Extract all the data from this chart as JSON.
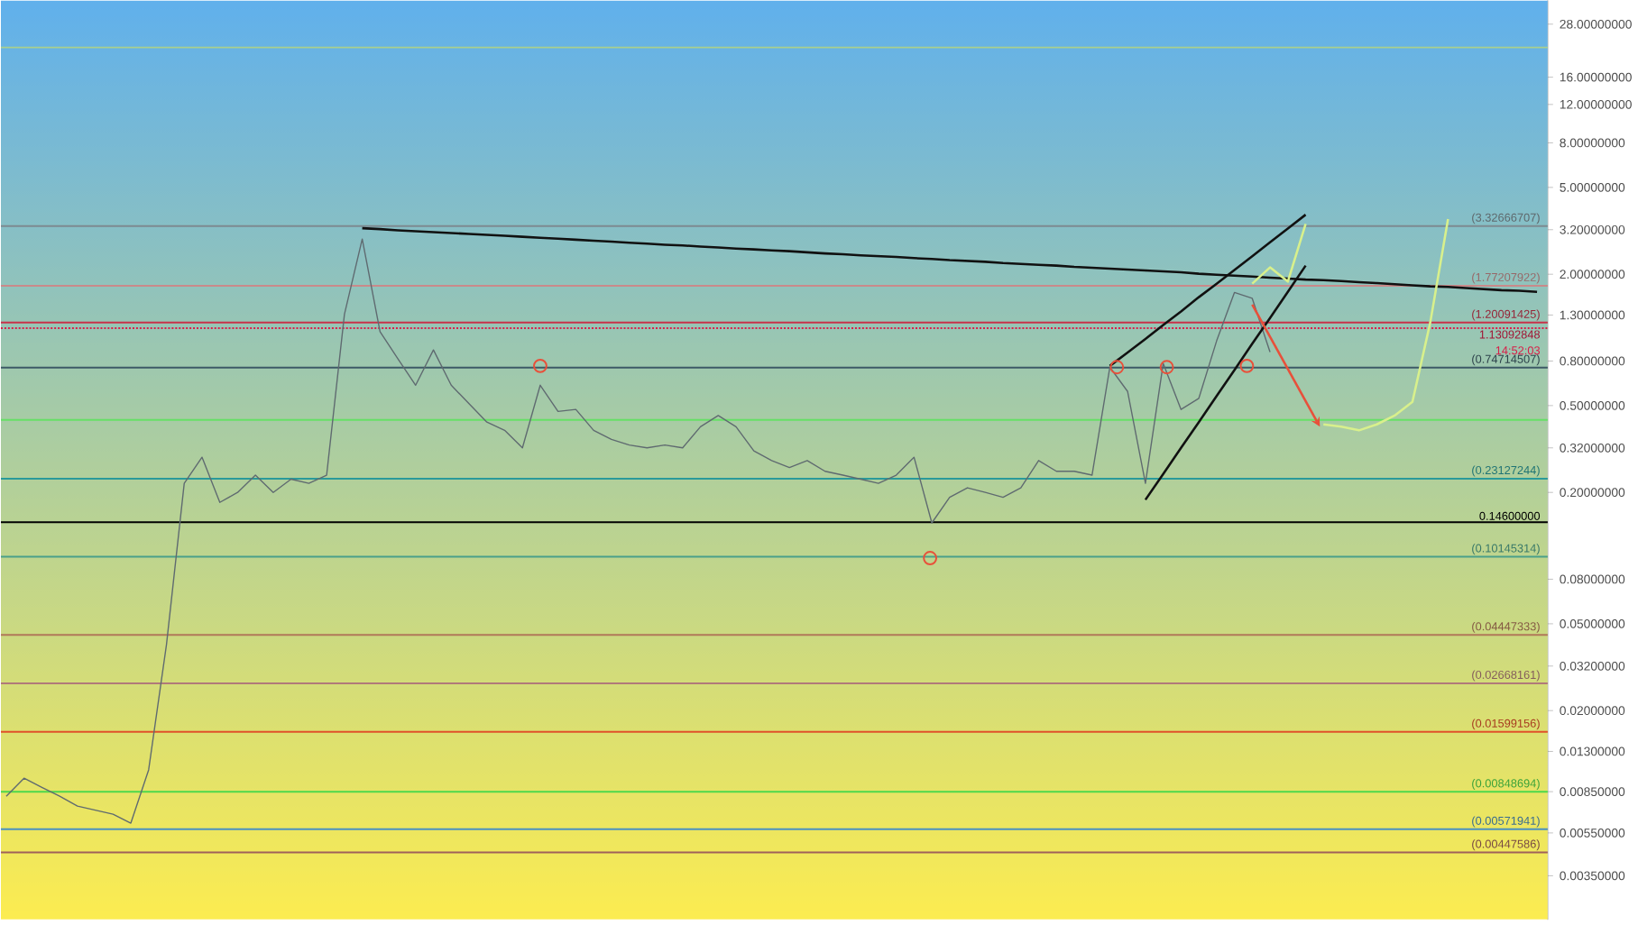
{
  "chart_data": {
    "type": "line",
    "log": "y",
    "tick_labels": "y",
    "ylim": [
      0.0022,
      36
    ],
    "categories": [
      null,
      null,
      null,
      null,
      null,
      null,
      null,
      null,
      null,
      null,
      null,
      null,
      null,
      null,
      null,
      null,
      null,
      null,
      null,
      null,
      null,
      null,
      null,
      null,
      null,
      null,
      null,
      null,
      null,
      null,
      null,
      null,
      null,
      null,
      null,
      null,
      null,
      null,
      null,
      null,
      null,
      null,
      null,
      null,
      null,
      null,
      null,
      null,
      null,
      null,
      null,
      null,
      null,
      null,
      null,
      null,
      null,
      null,
      null,
      null,
      null,
      null,
      null,
      null,
      null,
      null,
      null,
      null,
      null,
      null,
      null,
      null,
      null,
      null,
      null,
      null,
      null,
      null,
      null,
      null,
      null,
      null,
      null,
      null,
      null,
      null,
      null
    ],
    "yticks": [
      {
        "value": 28,
        "label": "28.00000000"
      },
      {
        "value": 16,
        "label": "16.00000000"
      },
      {
        "value": 12,
        "label": "12.00000000"
      },
      {
        "value": 8,
        "label": "8.00000000"
      },
      {
        "value": 5,
        "label": "5.00000000"
      },
      {
        "value": 3.2,
        "label": "3.20000000"
      },
      {
        "value": 2,
        "label": "2.00000000"
      },
      {
        "value": 1.3,
        "label": "1.30000000"
      },
      {
        "value": 0.8,
        "label": "0.80000000"
      },
      {
        "value": 0.5,
        "label": "0.50000000"
      },
      {
        "value": 0.32,
        "label": "0.32000000"
      },
      {
        "value": 0.2,
        "label": "0.20000000"
      },
      {
        "value": 0.08,
        "label": "0.08000000"
      },
      {
        "value": 0.05,
        "label": "0.05000000"
      },
      {
        "value": 0.032,
        "label": "0.03200000"
      },
      {
        "value": 0.02,
        "label": "0.02000000"
      },
      {
        "value": 0.013,
        "label": "0.01300000"
      },
      {
        "value": 0.0085,
        "label": "0.00850000"
      },
      {
        "value": 0.0055,
        "label": "0.00550000"
      },
      {
        "value": 0.0035,
        "label": "0.00350000"
      }
    ],
    "series": [
      {
        "color": "#5f6a70",
        "values": [
          0.0081,
          0.0098,
          0.0089,
          0.0081,
          0.0073,
          0.007,
          0.0067,
          0.0061,
          0.0107,
          0.04,
          0.22,
          0.29,
          0.18,
          0.2,
          0.24,
          0.2,
          0.23,
          0.22,
          0.24,
          1.31,
          2.9,
          1.09,
          0.82,
          0.62,
          0.9,
          0.62,
          0.51,
          0.42,
          0.385,
          0.32,
          0.62,
          0.47,
          0.48,
          0.385,
          0.35,
          0.33,
          0.32,
          0.33,
          0.32,
          0.4,
          0.45,
          0.4,
          0.31,
          0.28,
          0.26,
          0.28,
          0.25,
          0.24,
          0.23,
          0.22,
          0.24,
          0.29,
          0.145,
          0.19,
          0.21,
          0.2,
          0.19,
          0.21,
          0.28,
          0.25,
          0.25,
          0.24,
          0.75,
          0.58,
          0.22,
          0.78,
          0.48,
          0.54,
          0.99,
          1.65,
          1.55,
          0.88,
          null,
          null,
          null,
          null,
          null,
          null,
          null,
          null,
          null,
          null,
          null,
          null,
          null,
          null,
          null
        ]
      },
      {
        "color": "#111111",
        "values": [
          null,
          null,
          null,
          null,
          null,
          null,
          null,
          null,
          null,
          null,
          null,
          null,
          null,
          null,
          null,
          null,
          null,
          null,
          null,
          null,
          3.25,
          3.22,
          3.18,
          3.15,
          3.12,
          3.09,
          3.06,
          3.03,
          3.0,
          2.97,
          2.94,
          2.91,
          2.88,
          2.85,
          2.82,
          2.79,
          2.76,
          2.73,
          2.71,
          2.68,
          2.65,
          2.62,
          2.6,
          2.57,
          2.55,
          2.52,
          2.49,
          2.47,
          2.44,
          2.42,
          2.4,
          2.37,
          2.35,
          2.32,
          2.3,
          2.28,
          2.25,
          2.23,
          2.21,
          2.19,
          2.16,
          2.14,
          2.12,
          2.1,
          2.08,
          2.06,
          2.04,
          2.01,
          1.99,
          1.97,
          1.95,
          1.93,
          1.91,
          1.89,
          1.88,
          1.86,
          1.84,
          1.82,
          1.8,
          1.78,
          1.76,
          1.75,
          1.73,
          1.71,
          1.69,
          1.68,
          1.66
        ]
      },
      {
        "color": "#111111",
        "values": [
          null,
          null,
          null,
          null,
          null,
          null,
          null,
          null,
          null,
          null,
          null,
          null,
          null,
          null,
          null,
          null,
          null,
          null,
          null,
          null,
          null,
          null,
          null,
          null,
          null,
          null,
          null,
          null,
          null,
          null,
          null,
          null,
          null,
          null,
          null,
          null,
          null,
          null,
          null,
          null,
          null,
          null,
          null,
          null,
          null,
          null,
          null,
          null,
          null,
          null,
          null,
          null,
          null,
          null,
          null,
          null,
          null,
          null,
          null,
          null,
          null,
          null,
          0.76,
          0.875,
          1.01,
          1.17,
          1.35,
          1.57,
          1.81,
          2.09,
          2.42,
          2.8,
          3.24,
          3.75,
          null,
          null,
          null,
          null,
          null,
          null,
          null,
          null,
          null,
          null,
          null,
          null,
          null
        ]
      },
      {
        "color": "#111111",
        "values": [
          null,
          null,
          null,
          null,
          null,
          null,
          null,
          null,
          null,
          null,
          null,
          null,
          null,
          null,
          null,
          null,
          null,
          null,
          null,
          null,
          null,
          null,
          null,
          null,
          null,
          null,
          null,
          null,
          null,
          null,
          null,
          null,
          null,
          null,
          null,
          null,
          null,
          null,
          null,
          null,
          null,
          null,
          null,
          null,
          null,
          null,
          null,
          null,
          null,
          null,
          null,
          null,
          null,
          null,
          null,
          null,
          null,
          null,
          null,
          null,
          null,
          null,
          null,
          null,
          0.185,
          0.243,
          0.32,
          0.42,
          0.553,
          0.728,
          0.96,
          1.26,
          1.66,
          2.19,
          null,
          null,
          null,
          null,
          null,
          null,
          null,
          null,
          null,
          null,
          null,
          null,
          null
        ]
      },
      {
        "color": "#d8f08c",
        "values": [
          null,
          null,
          null,
          null,
          null,
          null,
          null,
          null,
          null,
          null,
          null,
          null,
          null,
          null,
          null,
          null,
          null,
          null,
          null,
          null,
          null,
          null,
          null,
          null,
          null,
          null,
          null,
          null,
          null,
          null,
          null,
          null,
          null,
          null,
          null,
          null,
          null,
          null,
          null,
          null,
          null,
          null,
          null,
          null,
          null,
          null,
          null,
          null,
          null,
          null,
          null,
          null,
          null,
          null,
          null,
          null,
          null,
          null,
          null,
          null,
          null,
          null,
          null,
          null,
          null,
          null,
          null,
          null,
          null,
          null,
          1.81,
          2.15,
          1.85,
          3.4,
          null,
          null,
          null,
          null,
          null,
          null,
          null,
          null,
          null,
          null,
          null,
          null,
          null
        ]
      },
      {
        "color": "#d8f08c",
        "values": [
          null,
          null,
          null,
          null,
          null,
          null,
          null,
          null,
          null,
          null,
          null,
          null,
          null,
          null,
          null,
          null,
          null,
          null,
          null,
          null,
          null,
          null,
          null,
          null,
          null,
          null,
          null,
          null,
          null,
          null,
          null,
          null,
          null,
          null,
          null,
          null,
          null,
          null,
          null,
          null,
          null,
          null,
          null,
          null,
          null,
          null,
          null,
          null,
          null,
          null,
          null,
          null,
          null,
          null,
          null,
          null,
          null,
          null,
          null,
          null,
          null,
          null,
          null,
          null,
          null,
          null,
          null,
          null,
          null,
          null,
          null,
          null,
          null,
          null,
          0.41,
          0.4,
          0.385,
          0.41,
          0.45,
          0.52,
          1.2,
          3.58,
          null,
          null,
          null,
          null,
          null
        ]
      }
    ],
    "ref_lines": [
      {
        "axis": "y",
        "value": 21.9,
        "color": "#a8cf8e"
      },
      {
        "axis": "y",
        "value": 3.32666707,
        "label": "(3.32666707)",
        "color": "#7d8a90"
      },
      {
        "axis": "y",
        "value": 1.77207922,
        "label": "(1.77207922)",
        "color": "#c98a8a"
      },
      {
        "axis": "y",
        "value": 1.20091425,
        "label": "(1.20091425)",
        "color": "#c8324a"
      },
      {
        "axis": "y",
        "value": 1.13092848,
        "label": "1.13092848",
        "color": "#d81e48",
        "line_style": "dotted"
      },
      {
        "axis": "y",
        "value": 0.74714507,
        "label": "(0.74714507)",
        "color": "#3d5a66"
      },
      {
        "axis": "y",
        "value": 0.43,
        "color": "#66e066"
      },
      {
        "axis": "y",
        "value": 0.23127244,
        "label": "(0.23127244)",
        "color": "#2a9a9a"
      },
      {
        "axis": "y",
        "value": 0.146,
        "label": "0.14600000",
        "color": "#000000"
      },
      {
        "axis": "y",
        "value": 0.10145314,
        "label": "(0.10145314)",
        "color": "#4aa08a"
      },
      {
        "axis": "y",
        "value": 0.04447333,
        "label": "(0.04447333)",
        "color": "#b0785a"
      },
      {
        "axis": "y",
        "value": 0.02668161,
        "label": "(0.02668161)",
        "color": "#b07a7a"
      },
      {
        "axis": "y",
        "value": 0.01599156,
        "label": "(0.01599156)",
        "color": "#e0502a"
      },
      {
        "axis": "y",
        "value": 0.00848694,
        "label": "(0.00848694)",
        "color": "#4cd84c"
      },
      {
        "axis": "y",
        "value": 0.00571941,
        "label": "(0.00571941)",
        "color": "#4a90c0"
      },
      {
        "axis": "y",
        "value": 0.00447586,
        "label": "(0.00447586)",
        "color": "#a0605a"
      }
    ],
    "annotations": [
      {
        "text": "14:52:03",
        "y": 1.13092848
      }
    ]
  }
}
